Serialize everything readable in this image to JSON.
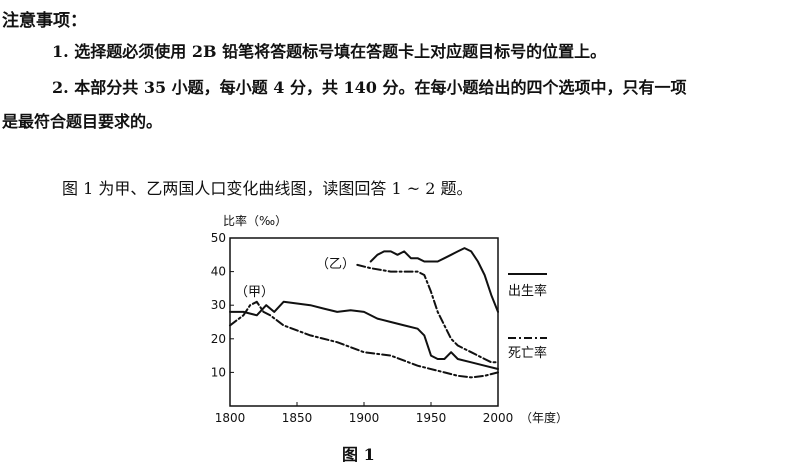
{
  "notice": {
    "title": "注意事项：",
    "rule1": "1. 选择题必须使用 2B 铅笔将答题标号填在答题卡上对应题目标号的位置上。",
    "rule2": "2. 本部分共 35 小题，每小题 4 分，共 140 分。在每小题给出的四个选项中，只有一项",
    "rule2_cont": "是最符合题目要求的。"
  },
  "intro": "图 1 为甲、乙两国人口变化曲线图，读图回答 1 ~ 2 题。",
  "caption": "图 1",
  "chart_data": {
    "type": "line",
    "ylabel": "比率（‰）",
    "xlabel": "（年度）",
    "xlim": [
      1800,
      2000
    ],
    "ylim": [
      0,
      50
    ],
    "x_ticks": [
      "1800",
      "1850",
      "1900",
      "1950",
      "2000"
    ],
    "y_ticks": [
      "10",
      "20",
      "30",
      "40",
      "50"
    ],
    "annotations": [
      "（甲）",
      "（乙）"
    ],
    "legend": [
      {
        "label": "出生率",
        "style": "solid"
      },
      {
        "label": "死亡率",
        "style": "dash-dot"
      }
    ],
    "series": [
      {
        "group": "甲",
        "name": "出生率",
        "style": "solid",
        "x": [
          1800,
          1810,
          1820,
          1827,
          1833,
          1840,
          1850,
          1860,
          1870,
          1880,
          1890,
          1900,
          1910,
          1920,
          1930,
          1940,
          1945,
          1950,
          1955,
          1960,
          1965,
          1970,
          1980,
          1990,
          2000
        ],
        "y": [
          28,
          28,
          27,
          30,
          28,
          31,
          30.5,
          30,
          29,
          28,
          28.5,
          28,
          26,
          25,
          24,
          23,
          21,
          15,
          14,
          14,
          16,
          14,
          13,
          12,
          11
        ]
      },
      {
        "group": "甲",
        "name": "死亡率",
        "style": "dash-dot",
        "x": [
          1800,
          1810,
          1815,
          1820,
          1825,
          1830,
          1840,
          1860,
          1880,
          1900,
          1920,
          1940,
          1960,
          1970,
          1980,
          1990,
          2000
        ],
        "y": [
          24,
          27,
          30,
          31,
          28,
          27,
          24,
          21,
          19,
          16,
          15,
          12,
          10,
          9,
          8.5,
          9,
          10
        ]
      },
      {
        "group": "乙",
        "name": "出生率",
        "style": "solid",
        "x": [
          1905,
          1910,
          1915,
          1920,
          1925,
          1930,
          1935,
          1940,
          1945,
          1950,
          1955,
          1960,
          1965,
          1970,
          1975,
          1980,
          1985,
          1990,
          1995,
          2000
        ],
        "y": [
          43,
          45,
          46,
          46,
          45,
          46,
          44,
          44,
          43,
          43,
          43,
          44,
          45,
          46,
          47,
          46,
          43,
          39,
          33,
          28
        ]
      },
      {
        "group": "乙",
        "name": "死亡率",
        "style": "dash-dot",
        "x": [
          1895,
          1905,
          1920,
          1930,
          1940,
          1945,
          1950,
          1955,
          1960,
          1965,
          1970,
          1975,
          1980,
          1985,
          1990,
          1995,
          2000
        ],
        "y": [
          42,
          41,
          40,
          40,
          40,
          39,
          34,
          28,
          24,
          20,
          18,
          17,
          16,
          15,
          14,
          13,
          13
        ]
      }
    ]
  }
}
